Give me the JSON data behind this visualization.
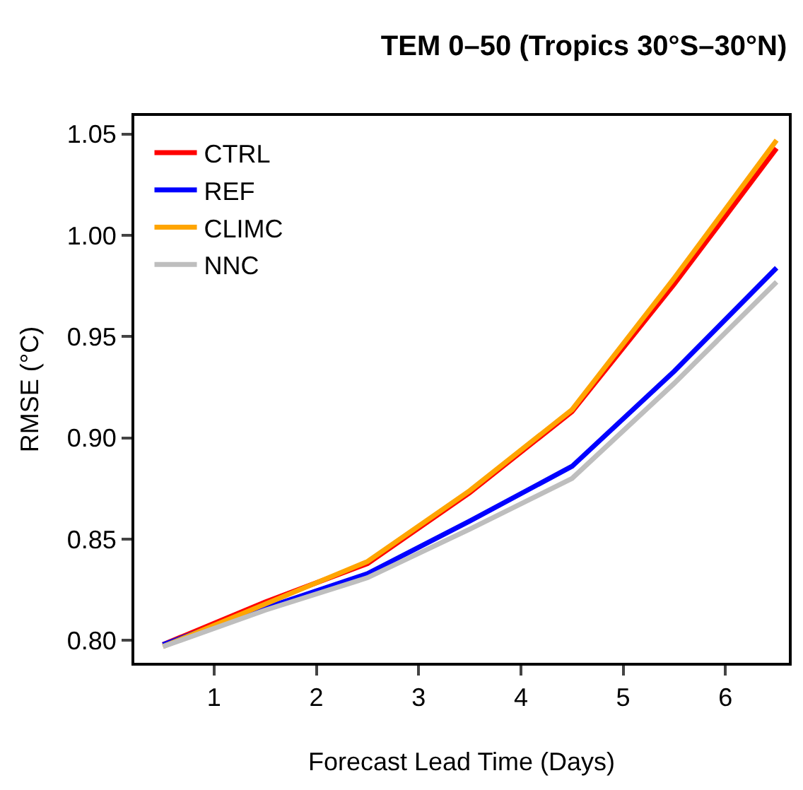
{
  "chart_data": {
    "type": "line",
    "title": "TEM 0–50 (Tropics 30°S–30°N)",
    "xlabel": "Forecast Lead Time (Days)",
    "ylabel": "RMSE (°C)",
    "x": [
      0.5,
      1.5,
      2.5,
      3.5,
      4.5,
      5.5,
      6.5
    ],
    "series": [
      {
        "name": "CTRL",
        "color": "#ff0000",
        "values": [
          0.798,
          0.819,
          0.838,
          0.873,
          0.913,
          0.976,
          1.043
        ]
      },
      {
        "name": "REF",
        "color": "#0000ff",
        "values": [
          0.798,
          0.816,
          0.833,
          0.859,
          0.886,
          0.933,
          0.984
        ]
      },
      {
        "name": "CLIMC",
        "color": "#ffa500",
        "values": [
          0.797,
          0.818,
          0.839,
          0.874,
          0.914,
          0.979,
          1.047
        ]
      },
      {
        "name": "NNC",
        "color": "#bebebe",
        "values": [
          0.797,
          0.815,
          0.831,
          0.855,
          0.88,
          0.927,
          0.977
        ]
      }
    ],
    "xlim": [
      0.22,
      6.62
    ],
    "xticks": [
      1,
      2,
      3,
      4,
      5,
      6
    ],
    "ylim": [
      0.789,
      1.059
    ],
    "yticks": [
      {
        "value": 0.8,
        "label": "0.80"
      },
      0.85,
      {
        "value": 0.9,
        "label": "0.90"
      },
      0.95,
      {
        "value": 1,
        "label": "1.00"
      },
      1.05
    ],
    "legend": "top left",
    "marker": "none",
    "line_style": "solid"
  }
}
